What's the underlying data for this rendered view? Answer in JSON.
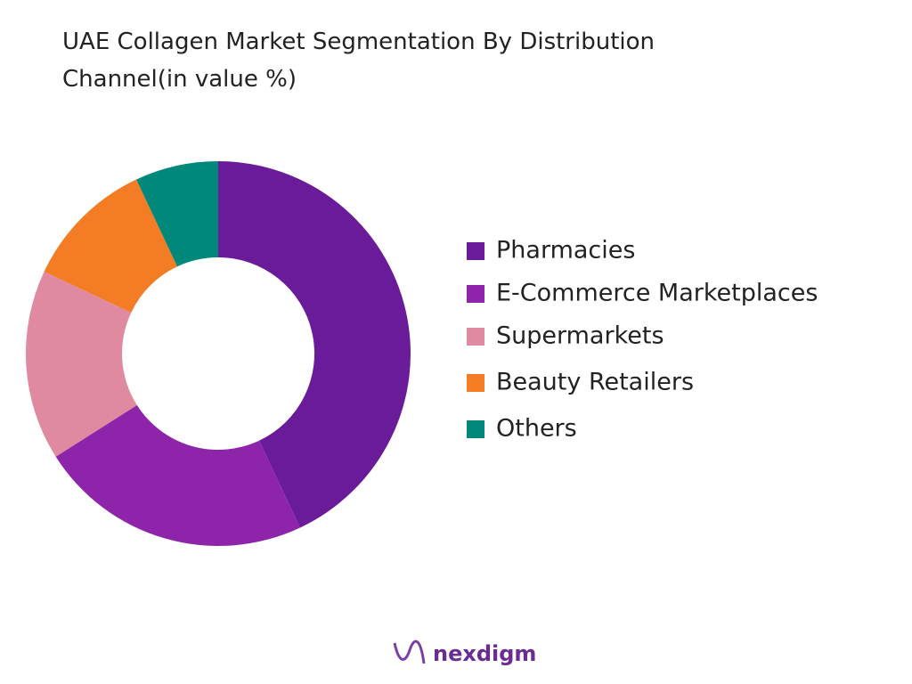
{
  "chart_data": {
    "type": "donut",
    "title": "UAE Collagen Market  Segmentation By Distribution Channel(in value %)",
    "categories": [
      "Pharmacies",
      "E-Commerce Marketplaces",
      "Supermarkets",
      "Beauty Retailers",
      "Others"
    ],
    "values": [
      43,
      23,
      16,
      11,
      7
    ],
    "colors": [
      "#6a1b9a",
      "#8e24aa",
      "#df8aa0",
      "#f47c24",
      "#00897b"
    ],
    "legend": "right"
  },
  "footer": {
    "logo": "nexdigm"
  }
}
